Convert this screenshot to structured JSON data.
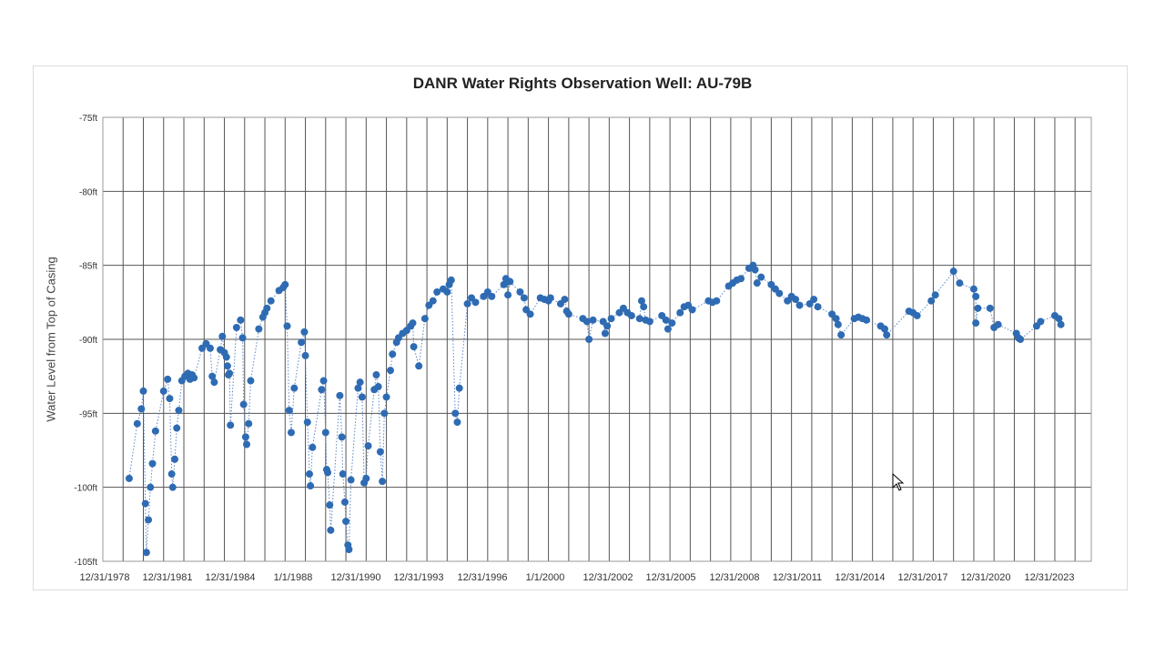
{
  "chart_data": {
    "type": "scatter",
    "title": "DANR Water Rights Observation Well: AU-79B",
    "ylabel": "Water Level from Top of Casing",
    "xlabel": "",
    "ylim": [
      -105,
      -75
    ],
    "y_ticks": [
      {
        "value": -75,
        "label": "-75ft"
      },
      {
        "value": -80,
        "label": "-80ft"
      },
      {
        "value": -85,
        "label": "-85ft"
      },
      {
        "value": -90,
        "label": "-90ft"
      },
      {
        "value": -95,
        "label": "-95ft"
      },
      {
        "value": -100,
        "label": "-100ft"
      },
      {
        "value": -105,
        "label": "-105ft"
      }
    ],
    "x_tick_labels": [
      "12/31/1978",
      "12/31/1981",
      "12/31/1984",
      "1/1/1988",
      "12/31/1990",
      "12/31/1993",
      "12/31/1996",
      "1/1/2000",
      "12/31/2002",
      "12/31/2005",
      "12/31/2008",
      "12/31/2011",
      "12/31/2014",
      "12/31/2017",
      "12/31/2020",
      "12/31/2023"
    ],
    "grid": true,
    "series_color": "#2e6bb3",
    "connector": "dotted",
    "points": [
      [
        1978.8,
        -99.4
      ],
      [
        1979.2,
        -95.7
      ],
      [
        1979.4,
        -94.7
      ],
      [
        1979.5,
        -93.5
      ],
      [
        1979.6,
        -101.1
      ],
      [
        1979.65,
        -104.4
      ],
      [
        1979.75,
        -102.2
      ],
      [
        1979.85,
        -100.0
      ],
      [
        1979.95,
        -98.4
      ],
      [
        1980.1,
        -96.2
      ],
      [
        1980.5,
        -93.5
      ],
      [
        1980.7,
        -92.7
      ],
      [
        1980.8,
        -94.0
      ],
      [
        1980.9,
        -99.1
      ],
      [
        1980.95,
        -100.0
      ],
      [
        1981.05,
        -98.1
      ],
      [
        1981.15,
        -96.0
      ],
      [
        1981.25,
        -94.8
      ],
      [
        1981.4,
        -92.8
      ],
      [
        1981.55,
        -92.5
      ],
      [
        1981.7,
        -92.3
      ],
      [
        1981.8,
        -92.7
      ],
      [
        1981.9,
        -92.4
      ],
      [
        1982.0,
        -92.6
      ],
      [
        1982.4,
        -90.6
      ],
      [
        1982.6,
        -90.3
      ],
      [
        1982.8,
        -90.6
      ],
      [
        1982.9,
        -92.5
      ],
      [
        1983.0,
        -92.9
      ],
      [
        1983.3,
        -90.7
      ],
      [
        1983.4,
        -89.8
      ],
      [
        1983.5,
        -90.9
      ],
      [
        1983.6,
        -91.2
      ],
      [
        1983.65,
        -91.8
      ],
      [
        1983.7,
        -92.4
      ],
      [
        1983.75,
        -92.3
      ],
      [
        1983.8,
        -95.8
      ],
      [
        1984.1,
        -89.2
      ],
      [
        1984.3,
        -88.7
      ],
      [
        1984.4,
        -89.9
      ],
      [
        1984.45,
        -94.4
      ],
      [
        1984.55,
        -96.6
      ],
      [
        1984.6,
        -97.1
      ],
      [
        1984.7,
        -95.7
      ],
      [
        1984.8,
        -92.8
      ],
      [
        1985.2,
        -89.3
      ],
      [
        1985.4,
        -88.5
      ],
      [
        1985.5,
        -88.2
      ],
      [
        1985.6,
        -87.9
      ],
      [
        1985.8,
        -87.4
      ],
      [
        1986.2,
        -86.7
      ],
      [
        1986.4,
        -86.5
      ],
      [
        1986.5,
        -86.3
      ],
      [
        1986.6,
        -89.1
      ],
      [
        1986.7,
        -94.8
      ],
      [
        1986.8,
        -96.3
      ],
      [
        1986.95,
        -93.3
      ],
      [
        1987.3,
        -90.2
      ],
      [
        1987.45,
        -89.5
      ],
      [
        1987.5,
        -91.1
      ],
      [
        1987.6,
        -95.6
      ],
      [
        1987.7,
        -99.1
      ],
      [
        1987.75,
        -99.9
      ],
      [
        1987.85,
        -97.3
      ],
      [
        1988.3,
        -93.4
      ],
      [
        1988.4,
        -92.8
      ],
      [
        1988.5,
        -96.3
      ],
      [
        1988.55,
        -98.8
      ],
      [
        1988.6,
        -99.0
      ],
      [
        1988.7,
        -101.2
      ],
      [
        1988.75,
        -102.9
      ],
      [
        1989.2,
        -93.8
      ],
      [
        1989.3,
        -96.6
      ],
      [
        1989.35,
        -99.1
      ],
      [
        1989.45,
        -101.0
      ],
      [
        1989.5,
        -102.3
      ],
      [
        1989.6,
        -103.9
      ],
      [
        1989.65,
        -104.2
      ],
      [
        1989.75,
        -99.5
      ],
      [
        1990.1,
        -93.3
      ],
      [
        1990.2,
        -92.9
      ],
      [
        1990.3,
        -93.9
      ],
      [
        1990.4,
        -99.7
      ],
      [
        1990.5,
        -99.4
      ],
      [
        1990.6,
        -97.2
      ],
      [
        1990.9,
        -93.4
      ],
      [
        1991.0,
        -92.4
      ],
      [
        1991.1,
        -93.2
      ],
      [
        1991.2,
        -97.6
      ],
      [
        1991.3,
        -99.6
      ],
      [
        1991.4,
        -95.0
      ],
      [
        1991.5,
        -93.9
      ],
      [
        1991.7,
        -92.1
      ],
      [
        1991.8,
        -91.0
      ],
      [
        1992.0,
        -90.2
      ],
      [
        1992.1,
        -89.9
      ],
      [
        1992.3,
        -89.6
      ],
      [
        1992.5,
        -89.4
      ],
      [
        1992.7,
        -89.1
      ],
      [
        1992.8,
        -88.9
      ],
      [
        1992.85,
        -90.5
      ],
      [
        1993.1,
        -91.8
      ],
      [
        1993.4,
        -88.6
      ],
      [
        1993.6,
        -87.7
      ],
      [
        1993.8,
        -87.4
      ],
      [
        1994.0,
        -86.8
      ],
      [
        1994.3,
        -86.6
      ],
      [
        1994.5,
        -86.8
      ],
      [
        1994.6,
        -86.3
      ],
      [
        1994.7,
        -86.0
      ],
      [
        1994.9,
        -95.0
      ],
      [
        1995.0,
        -95.6
      ],
      [
        1995.1,
        -93.3
      ],
      [
        1995.5,
        -87.6
      ],
      [
        1995.7,
        -87.2
      ],
      [
        1995.9,
        -87.5
      ],
      [
        1996.3,
        -87.1
      ],
      [
        1996.5,
        -86.8
      ],
      [
        1996.7,
        -87.1
      ],
      [
        1997.3,
        -86.3
      ],
      [
        1997.4,
        -85.9
      ],
      [
        1997.5,
        -87.0
      ],
      [
        1997.6,
        -86.1
      ],
      [
        1998.1,
        -86.8
      ],
      [
        1998.3,
        -87.2
      ],
      [
        1998.4,
        -88.0
      ],
      [
        1998.6,
        -88.3
      ],
      [
        1999.1,
        -87.2
      ],
      [
        1999.3,
        -87.3
      ],
      [
        1999.5,
        -87.4
      ],
      [
        1999.6,
        -87.2
      ],
      [
        2000.1,
        -87.6
      ],
      [
        2000.3,
        -87.3
      ],
      [
        2000.4,
        -88.1
      ],
      [
        2000.5,
        -88.3
      ],
      [
        2001.2,
        -88.6
      ],
      [
        2001.4,
        -88.8
      ],
      [
        2001.5,
        -90.0
      ],
      [
        2001.7,
        -88.7
      ],
      [
        2002.2,
        -88.8
      ],
      [
        2002.3,
        -89.6
      ],
      [
        2002.4,
        -89.1
      ],
      [
        2002.6,
        -88.6
      ],
      [
        2003.0,
        -88.2
      ],
      [
        2003.2,
        -87.9
      ],
      [
        2003.4,
        -88.2
      ],
      [
        2003.6,
        -88.4
      ],
      [
        2004.0,
        -88.6
      ],
      [
        2004.1,
        -87.4
      ],
      [
        2004.2,
        -87.8
      ],
      [
        2004.3,
        -88.7
      ],
      [
        2004.5,
        -88.8
      ],
      [
        2005.1,
        -88.4
      ],
      [
        2005.3,
        -88.7
      ],
      [
        2005.4,
        -89.3
      ],
      [
        2005.6,
        -88.9
      ],
      [
        2006.0,
        -88.2
      ],
      [
        2006.2,
        -87.8
      ],
      [
        2006.4,
        -87.7
      ],
      [
        2006.6,
        -88.0
      ],
      [
        2007.4,
        -87.4
      ],
      [
        2007.6,
        -87.5
      ],
      [
        2007.8,
        -87.4
      ],
      [
        2008.4,
        -86.4
      ],
      [
        2008.6,
        -86.2
      ],
      [
        2008.8,
        -86.0
      ],
      [
        2009.0,
        -85.9
      ],
      [
        2009.4,
        -85.2
      ],
      [
        2009.6,
        -85.0
      ],
      [
        2009.7,
        -85.3
      ],
      [
        2009.8,
        -86.2
      ],
      [
        2010.0,
        -85.8
      ],
      [
        2010.5,
        -86.3
      ],
      [
        2010.7,
        -86.6
      ],
      [
        2010.9,
        -86.9
      ],
      [
        2011.3,
        -87.4
      ],
      [
        2011.5,
        -87.1
      ],
      [
        2011.7,
        -87.3
      ],
      [
        2011.9,
        -87.7
      ],
      [
        2012.4,
        -87.6
      ],
      [
        2012.6,
        -87.3
      ],
      [
        2012.8,
        -87.8
      ],
      [
        2013.5,
        -88.3
      ],
      [
        2013.7,
        -88.6
      ],
      [
        2013.8,
        -89.0
      ],
      [
        2013.95,
        -89.7
      ],
      [
        2014.6,
        -88.6
      ],
      [
        2014.8,
        -88.5
      ],
      [
        2015.0,
        -88.6
      ],
      [
        2015.2,
        -88.7
      ],
      [
        2015.9,
        -89.1
      ],
      [
        2016.1,
        -89.3
      ],
      [
        2016.2,
        -89.7
      ],
      [
        2017.3,
        -88.1
      ],
      [
        2017.5,
        -88.2
      ],
      [
        2017.7,
        -88.4
      ],
      [
        2018.4,
        -87.4
      ],
      [
        2018.6,
        -87.0
      ],
      [
        2019.5,
        -85.4
      ],
      [
        2019.8,
        -86.2
      ],
      [
        2020.5,
        -86.6
      ],
      [
        2020.6,
        -87.1
      ],
      [
        2020.7,
        -87.9
      ],
      [
        2020.6,
        -88.9
      ],
      [
        2021.3,
        -87.9
      ],
      [
        2021.5,
        -89.2
      ],
      [
        2021.7,
        -89.0
      ],
      [
        2022.6,
        -89.6
      ],
      [
        2022.7,
        -89.9
      ],
      [
        2022.8,
        -90.0
      ],
      [
        2023.6,
        -89.1
      ],
      [
        2023.8,
        -88.8
      ],
      [
        2024.5,
        -88.4
      ],
      [
        2024.7,
        -88.6
      ],
      [
        2024.8,
        -89.0
      ]
    ]
  },
  "colors": {
    "frame_border": "#dcdcdc",
    "grid": "#555555",
    "marker": "#2e6bb3"
  }
}
